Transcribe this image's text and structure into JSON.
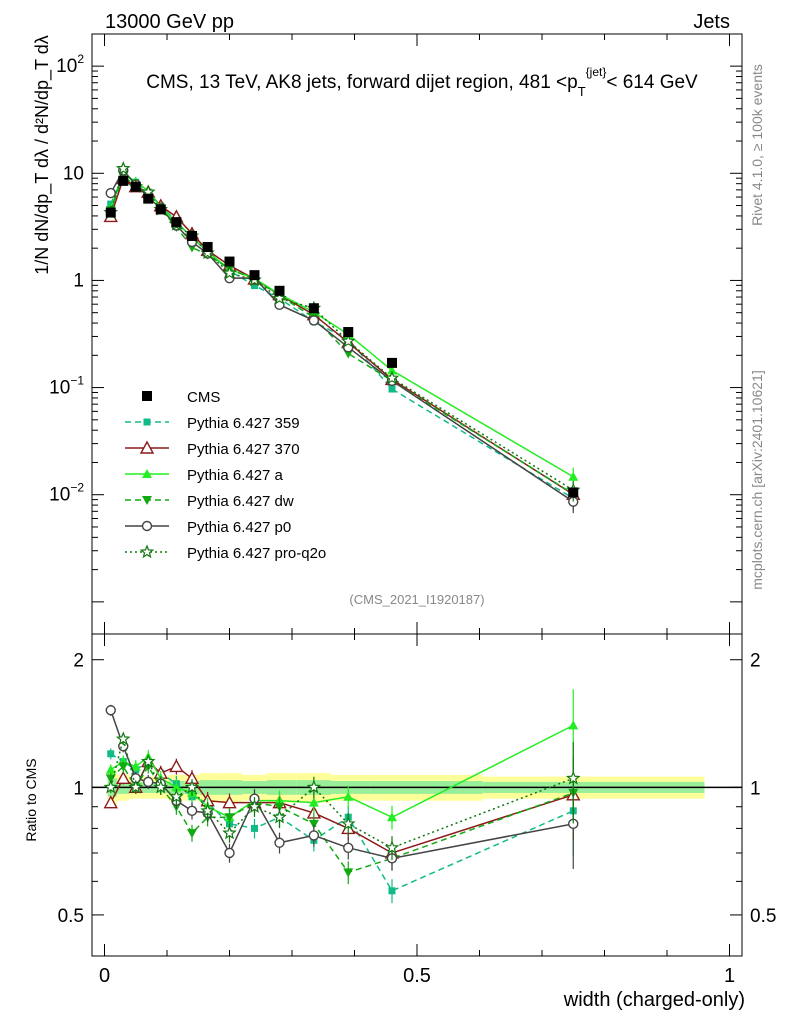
{
  "header": {
    "left": "13000 GeV pp",
    "right": "Jets"
  },
  "side": {
    "rivet": "Rivet 4.1.0, ≥ 100k events",
    "mcplots": "mcplots.cern.ch [arXiv:2401.10621]"
  },
  "chart_data": {
    "type": "line",
    "title": "CMS, 13 TeV, AK8 jets, forward dijet region, 481 <p_T^{jet}< 614 GeV",
    "title_parts": {
      "pre": "CMS, 13 TeV, AK8 jets, forward dijet region, 481 <p",
      "sub": "T",
      "sup": "{jet}",
      "post": "< 614 GeV"
    },
    "analysis_id": "(CMS_2021_I1920187)",
    "ylabel_main": "1/N dN/dp_T dλ / d²N/dp_T dλ",
    "ylabel_ratio": "Ratio to CMS",
    "xlabel": "width (charged-only)",
    "x_ticks": [
      "0",
      "0.5",
      "1"
    ],
    "x_range": [
      -0.02,
      1.02
    ],
    "y_range_main_log10": [
      -3.3,
      2.3
    ],
    "y_ticks_main": [
      {
        "exp": -2,
        "label": "10"
      },
      {
        "exp": -1,
        "label": "10"
      },
      {
        "exp": 0,
        "label": "1"
      },
      {
        "exp": 1,
        "label": "10"
      },
      {
        "exp": 2,
        "label": "10"
      }
    ],
    "y_tick_exponents": {
      "-2": "−2",
      "-1": "−1",
      "2": "2"
    },
    "y_range_ratio": [
      0.4,
      2.3
    ],
    "y_ticks_ratio": [
      {
        "value": 0.5,
        "label": "0.5"
      },
      {
        "value": 1,
        "label": "1"
      },
      {
        "value": 2,
        "label": "2"
      }
    ],
    "x": [
      0.01,
      0.03,
      0.05,
      0.07,
      0.09,
      0.115,
      0.14,
      0.165,
      0.2,
      0.24,
      0.28,
      0.335,
      0.39,
      0.46,
      0.75
    ],
    "cms_values": [
      4.3,
      8.5,
      7.5,
      5.8,
      4.6,
      3.5,
      2.6,
      2.05,
      1.5,
      1.12,
      0.8,
      0.55,
      0.33,
      0.17,
      0.0105
    ],
    "band_half_widths": [
      0.1,
      0.07,
      0.06,
      0.06,
      0.06,
      0.07,
      0.07,
      0.08,
      0.08,
      0.07,
      0.08,
      0.08,
      0.07,
      0.07,
      0.06
    ],
    "series": [
      {
        "name": "Pythia 6.427 359",
        "color": "#11bb88",
        "dash": "6,4",
        "marker": "square",
        "ratio": [
          1.2,
          1.15,
          1.1,
          1.15,
          1.08,
          1.02,
          0.95,
          0.92,
          0.82,
          0.8,
          0.85,
          0.75,
          0.85,
          0.57,
          0.88
        ]
      },
      {
        "name": "Pythia 6.427 370",
        "color": "#8b1a1a",
        "dash": "",
        "marker": "triangle-open",
        "ratio": [
          0.92,
          1.05,
          1.0,
          1.15,
          1.08,
          1.12,
          1.05,
          0.93,
          0.92,
          0.92,
          0.92,
          0.87,
          0.8,
          0.7,
          0.96
        ]
      },
      {
        "name": "Pythia 6.427 a",
        "color": "#22ee22",
        "dash": "",
        "marker": "triangle",
        "ratio": [
          1.1,
          1.15,
          1.12,
          1.18,
          1.05,
          1.0,
          0.97,
          0.9,
          0.85,
          0.93,
          0.93,
          0.92,
          0.95,
          0.85,
          1.4
        ]
      },
      {
        "name": "Pythia 6.427 dw",
        "color": "#11aa11",
        "dash": "6,4",
        "marker": "triangle-down",
        "ratio": [
          1.05,
          1.12,
          1.0,
          1.12,
          1.0,
          0.9,
          0.78,
          0.85,
          0.85,
          0.92,
          0.9,
          0.82,
          0.63,
          0.68,
          0.97
        ]
      },
      {
        "name": "Pythia 6.427 p0",
        "color": "#444444",
        "dash": "",
        "marker": "circle-open",
        "ratio": [
          1.52,
          1.25,
          1.05,
          1.03,
          1.02,
          0.93,
          0.88,
          0.87,
          0.7,
          0.94,
          0.74,
          0.77,
          0.72,
          0.68,
          0.82
        ]
      },
      {
        "name": "Pythia 6.427 pro-q2o",
        "color": "#117711",
        "dash": "2,3",
        "marker": "star",
        "ratio": [
          1.0,
          1.3,
          1.0,
          1.15,
          1.0,
          0.95,
          1.0,
          0.88,
          0.78,
          0.9,
          0.85,
          1.0,
          0.82,
          0.72,
          1.05
        ]
      }
    ],
    "legend": {
      "cms_label": "CMS",
      "position": "center-left"
    }
  }
}
